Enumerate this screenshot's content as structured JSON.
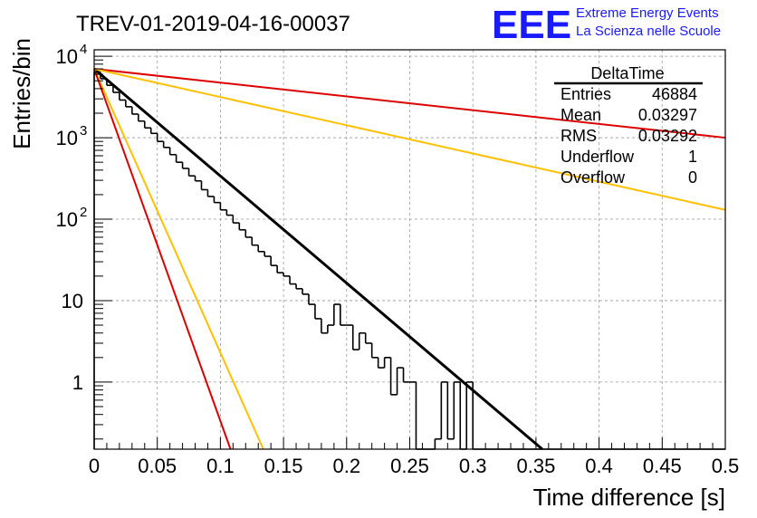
{
  "chart_data": {
    "type": "histogram",
    "title": "TREV-01-2019-04-16-00037",
    "xlabel": "Time difference [s]",
    "ylabel": "Entries/bin",
    "xlim": [
      0,
      0.5
    ],
    "ylim": [
      0.15,
      12000
    ],
    "yscale": "log",
    "grid": true,
    "x_ticks": [
      "0",
      "0.05",
      "0.1",
      "0.15",
      "0.2",
      "0.25",
      "0.3",
      "0.35",
      "0.4",
      "0.45",
      "0.5"
    ],
    "y_ticks": [
      {
        "value": 10000,
        "base": "10",
        "exp": "4"
      },
      {
        "value": 1000,
        "base": "10",
        "exp": "3"
      },
      {
        "value": 100,
        "base": "10",
        "exp": "2"
      },
      {
        "value": 10,
        "base": "10",
        "exp": ""
      },
      {
        "value": 1,
        "base": "1",
        "exp": ""
      }
    ],
    "histogram": {
      "bin_width": 0.005,
      "color": "#000000",
      "values": [
        6400,
        5300,
        4400,
        3600,
        2900,
        2400,
        1950,
        1600,
        1320,
        1130,
        900,
        760,
        620,
        500,
        420,
        340,
        295,
        230,
        190,
        160,
        130,
        112,
        90,
        74,
        60,
        48,
        40,
        35,
        27,
        22,
        20,
        16,
        14,
        12,
        9,
        6,
        4,
        5,
        9,
        5,
        5,
        2.5,
        4,
        3,
        2,
        1.5,
        2,
        0.7,
        1.5,
        1,
        1,
        0.15,
        0.15,
        0.15,
        0.2,
        1,
        0.2,
        1,
        0.15,
        1,
        0.15,
        0.15,
        0.15,
        0.15,
        0.15,
        0.15,
        0.15,
        0.15,
        0.15,
        0.15,
        0.15,
        0.15,
        0.15,
        0.15,
        0.15,
        0.15,
        0.15,
        0.15,
        0.15,
        0.15,
        0.15,
        0.15,
        0.15,
        0.15,
        0.15,
        0.15,
        0.15,
        0.15,
        0.15,
        0.15,
        0.15,
        0.15,
        0.15,
        0.15,
        0.15,
        0.15,
        0.15,
        0.15,
        0.15,
        0.15
      ]
    },
    "fits": [
      {
        "color": "#000000",
        "x0": 0,
        "y0": 7000,
        "x1": 0.355,
        "y1": 0.15
      },
      {
        "color": "#dd0000",
        "x0": 0,
        "y0": 7000,
        "x1": 0.5,
        "y1": 1000
      },
      {
        "color": "#ffc000",
        "x0": 0,
        "y0": 7000,
        "x1": 0.5,
        "y1": 130
      },
      {
        "color": "#ffc000",
        "x0": 0,
        "y0": 7000,
        "x1": 0.134,
        "y1": 0.15
      },
      {
        "color": "#dd0000",
        "x0": 0,
        "y0": 7000,
        "x1": 0.108,
        "y1": 0.15
      }
    ]
  },
  "stats": {
    "title": "DeltaTime",
    "rows": [
      {
        "label": "Entries",
        "value": "46884"
      },
      {
        "label": "Mean",
        "value": "0.03297"
      },
      {
        "label": "RMS",
        "value": "0.03292"
      },
      {
        "label": "Underflow",
        "value": "1"
      },
      {
        "label": "Overflow",
        "value": "0"
      }
    ]
  },
  "logo": {
    "text": "EEE",
    "line1": "Extreme Energy Events",
    "line2": "La Scienza nelle Scuole",
    "color": "#1a1aff"
  }
}
